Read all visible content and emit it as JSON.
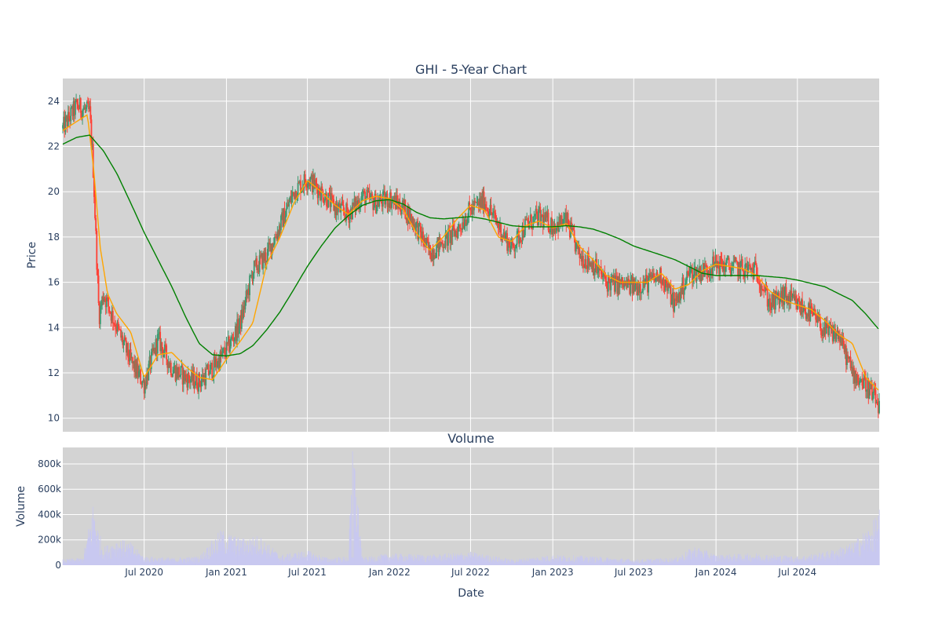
{
  "chart_data": [
    {
      "type": "candlestick",
      "title": "GHI - 5-Year Chart",
      "ylabel": "Price",
      "ylim": [
        9.4,
        25.0
      ],
      "yticks": [
        10,
        12,
        14,
        16,
        18,
        20,
        22,
        24
      ],
      "xlim": [
        "2020-01-01",
        "2024-12-31"
      ],
      "grid": true,
      "colors": {
        "background": "#d3d3d3",
        "increasing": "#3d9970",
        "decreasing": "#ff4136",
        "short_ma": "#ffa500",
        "long_ma": "#008000"
      },
      "series": [
        {
          "type": "candlestick",
          "approx_close": {
            "x": [
              "2020-01-01",
              "2020-02-01",
              "2020-03-01",
              "2020-03-08",
              "2020-03-15",
              "2020-03-22",
              "2020-04-01",
              "2020-05-01",
              "2020-06-01",
              "2020-07-01",
              "2020-08-01",
              "2020-09-01",
              "2020-10-01",
              "2020-11-01",
              "2020-12-01",
              "2021-01-01",
              "2021-02-01",
              "2021-03-01",
              "2021-04-01",
              "2021-05-01",
              "2021-06-01",
              "2021-07-01",
              "2021-08-01",
              "2021-09-01",
              "2021-10-01",
              "2021-11-01",
              "2021-12-01",
              "2022-01-01",
              "2022-02-01",
              "2022-03-01",
              "2022-04-01",
              "2022-05-01",
              "2022-06-01",
              "2022-07-01",
              "2022-08-01",
              "2022-09-01",
              "2022-10-01",
              "2022-11-01",
              "2022-12-01",
              "2023-01-01",
              "2023-02-01",
              "2023-03-01",
              "2023-04-01",
              "2023-05-01",
              "2023-06-01",
              "2023-07-01",
              "2023-08-01",
              "2023-09-01",
              "2023-10-01",
              "2023-11-01",
              "2023-12-01",
              "2024-01-01",
              "2024-02-01",
              "2024-03-01",
              "2024-04-01",
              "2024-05-01",
              "2024-06-01",
              "2024-07-01",
              "2024-08-01",
              "2024-09-01",
              "2024-10-01",
              "2024-11-01",
              "2024-12-01",
              "2024-12-31"
            ],
            "y": [
              22.8,
              23.8,
              23.5,
              21.5,
              18.0,
              14.5,
              15.5,
              14.0,
              12.5,
              11.5,
              13.5,
              12.2,
              11.8,
              11.6,
              12.2,
              13.0,
              14.2,
              16.5,
              17.2,
              18.5,
              20.0,
              20.6,
              20.0,
              19.3,
              19.0,
              19.8,
              19.5,
              19.7,
              19.3,
              18.5,
              17.3,
              17.8,
              18.3,
              19.2,
              19.6,
              18.5,
              17.5,
              18.5,
              18.9,
              18.5,
              18.7,
              17.2,
              16.8,
              16.0,
              15.9,
              15.8,
              16.0,
              16.3,
              15.0,
              16.4,
              16.5,
              16.8,
              16.7,
              16.6,
              16.5,
              15.0,
              15.4,
              15.0,
              14.6,
              13.8,
              13.7,
              12.0,
              11.5,
              10.5
            ]
          }
        },
        {
          "type": "line",
          "role": "short_ma",
          "x": [
            "2020-01-01",
            "2020-02-01",
            "2020-02-25",
            "2020-03-10",
            "2020-03-25",
            "2020-04-10",
            "2020-05-01",
            "2020-06-01",
            "2020-07-01",
            "2020-08-01",
            "2020-09-01",
            "2020-10-01",
            "2020-11-01",
            "2020-12-01",
            "2021-01-01",
            "2021-02-01",
            "2021-03-01",
            "2021-04-01",
            "2021-05-01",
            "2021-06-01",
            "2021-07-01",
            "2021-08-01",
            "2021-09-01",
            "2021-10-01",
            "2021-11-01",
            "2021-12-01",
            "2022-01-01",
            "2022-02-01",
            "2022-03-01",
            "2022-04-01",
            "2022-05-01",
            "2022-06-01",
            "2022-07-01",
            "2022-08-01",
            "2022-09-01",
            "2022-10-01",
            "2022-11-01",
            "2022-12-01",
            "2023-01-01",
            "2023-02-01",
            "2023-03-01",
            "2023-04-01",
            "2023-05-01",
            "2023-06-01",
            "2023-07-01",
            "2023-08-01",
            "2023-09-01",
            "2023-10-01",
            "2023-11-01",
            "2023-12-01",
            "2024-01-01",
            "2024-02-01",
            "2024-03-01",
            "2024-04-01",
            "2024-05-01",
            "2024-06-01",
            "2024-07-01",
            "2024-08-01",
            "2024-09-01",
            "2024-10-01",
            "2024-11-01",
            "2024-12-01",
            "2024-12-31"
          ],
          "y": [
            22.7,
            23.1,
            23.4,
            21.0,
            17.5,
            15.5,
            14.6,
            13.8,
            11.8,
            12.8,
            12.9,
            12.3,
            11.8,
            11.7,
            12.6,
            13.4,
            14.2,
            16.8,
            18.0,
            19.5,
            20.5,
            20.0,
            19.4,
            19.0,
            19.6,
            19.8,
            19.7,
            19.2,
            18.2,
            17.4,
            18.0,
            18.8,
            19.4,
            19.2,
            18.0,
            17.8,
            18.5,
            18.7,
            18.4,
            18.6,
            17.6,
            17.0,
            16.3,
            16.0,
            16.0,
            16.0,
            16.4,
            15.7,
            15.9,
            16.5,
            16.8,
            16.7,
            16.6,
            16.3,
            15.6,
            15.2,
            15.0,
            14.8,
            14.3,
            13.7,
            13.3,
            11.8,
            11.2
          ]
        },
        {
          "type": "line",
          "role": "long_ma",
          "x": [
            "2020-01-01",
            "2020-02-01",
            "2020-03-01",
            "2020-04-01",
            "2020-05-01",
            "2020-06-01",
            "2020-07-01",
            "2020-08-01",
            "2020-09-01",
            "2020-10-01",
            "2020-11-01",
            "2020-12-01",
            "2021-01-01",
            "2021-02-01",
            "2021-03-01",
            "2021-04-01",
            "2021-05-01",
            "2021-06-01",
            "2021-07-01",
            "2021-08-01",
            "2021-09-01",
            "2021-10-01",
            "2021-11-01",
            "2021-12-01",
            "2022-01-01",
            "2022-02-01",
            "2022-03-01",
            "2022-04-01",
            "2022-05-01",
            "2022-06-01",
            "2022-07-01",
            "2022-08-01",
            "2022-09-01",
            "2022-10-01",
            "2022-11-01",
            "2022-12-01",
            "2023-01-01",
            "2023-02-01",
            "2023-03-01",
            "2023-04-01",
            "2023-05-01",
            "2023-06-01",
            "2023-07-01",
            "2023-08-01",
            "2023-09-01",
            "2023-10-01",
            "2023-11-01",
            "2023-12-01",
            "2024-01-01",
            "2024-02-01",
            "2024-03-01",
            "2024-04-01",
            "2024-05-01",
            "2024-06-01",
            "2024-07-01",
            "2024-08-01",
            "2024-09-01",
            "2024-10-01",
            "2024-11-01",
            "2024-12-01",
            "2024-12-31"
          ],
          "y": [
            22.1,
            22.4,
            22.5,
            21.8,
            20.8,
            19.5,
            18.2,
            17.0,
            15.8,
            14.5,
            13.3,
            12.8,
            12.75,
            12.85,
            13.2,
            13.9,
            14.7,
            15.7,
            16.7,
            17.6,
            18.4,
            18.95,
            19.4,
            19.6,
            19.65,
            19.45,
            19.1,
            18.85,
            18.8,
            18.85,
            18.9,
            18.8,
            18.65,
            18.5,
            18.45,
            18.45,
            18.45,
            18.5,
            18.45,
            18.35,
            18.15,
            17.9,
            17.6,
            17.4,
            17.2,
            17.0,
            16.7,
            16.4,
            16.3,
            16.3,
            16.3,
            16.3,
            16.25,
            16.2,
            16.1,
            15.95,
            15.8,
            15.5,
            15.2,
            14.6,
            13.9
          ]
        }
      ]
    },
    {
      "type": "bar",
      "title": "Volume",
      "ylabel": "Volume",
      "xlabel": "Date",
      "ylim": [
        0,
        930000
      ],
      "yticks": [
        0,
        200000,
        400000,
        600000,
        800000
      ],
      "ytick_labels": [
        "0",
        "200k",
        "400k",
        "600k",
        "800k"
      ],
      "xticks": [
        "2020-07-01",
        "2021-01-01",
        "2021-07-01",
        "2022-01-01",
        "2022-07-01",
        "2023-01-01",
        "2023-07-01",
        "2024-01-01",
        "2024-07-01"
      ],
      "xtick_labels": [
        "Jul 2020",
        "Jan 2021",
        "Jul 2021",
        "Jan 2022",
        "Jul 2022",
        "Jan 2023",
        "Jul 2023",
        "Jan 2024",
        "Jul 2024"
      ],
      "xlim": [
        "2020-01-01",
        "2024-12-31"
      ],
      "grid": true,
      "colors": {
        "background": "#d3d3d3",
        "bar": "#c8c8f0"
      },
      "approx_volume": {
        "x": [
          "2020-01-01",
          "2020-02-15",
          "2020-03-10",
          "2020-03-20",
          "2020-04-01",
          "2020-05-01",
          "2020-06-01",
          "2020-07-01",
          "2020-09-01",
          "2020-11-01",
          "2020-12-20",
          "2021-02-01",
          "2021-03-15",
          "2021-05-01",
          "2021-07-01",
          "2021-08-15",
          "2021-10-01",
          "2021-10-10",
          "2021-11-01",
          "2022-01-01",
          "2022-04-01",
          "2022-07-01",
          "2022-10-01",
          "2023-01-01",
          "2023-04-01",
          "2023-07-01",
          "2023-10-01",
          "2023-11-15",
          "2024-01-01",
          "2024-04-01",
          "2024-07-01",
          "2024-09-01",
          "2024-11-01",
          "2024-12-15",
          "2024-12-31"
        ],
        "y": [
          40000,
          50000,
          450000,
          250000,
          120000,
          180000,
          150000,
          60000,
          50000,
          60000,
          240000,
          180000,
          200000,
          70000,
          100000,
          50000,
          60000,
          900000,
          50000,
          80000,
          70000,
          90000,
          40000,
          70000,
          60000,
          40000,
          50000,
          130000,
          70000,
          80000,
          60000,
          90000,
          150000,
          280000,
          380000
        ]
      }
    }
  ]
}
